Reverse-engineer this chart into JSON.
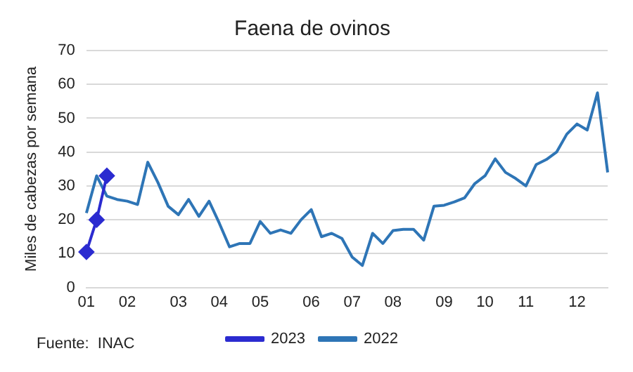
{
  "chart_data": {
    "type": "line",
    "title": "Faena de ovinos",
    "ylabel": "Miles de cabezas por semana",
    "annotations": [
      "Fuente:  INAC"
    ],
    "categories": [
      "01",
      null,
      null,
      null,
      "02",
      null,
      null,
      null,
      null,
      "03",
      null,
      null,
      null,
      "04",
      null,
      null,
      null,
      "05",
      null,
      null,
      null,
      null,
      "06",
      null,
      null,
      null,
      "07",
      null,
      null,
      null,
      "08",
      null,
      null,
      null,
      null,
      "09",
      null,
      null,
      null,
      "10",
      null,
      null,
      null,
      "11",
      null,
      null,
      null,
      null,
      "12",
      null,
      null,
      null
    ],
    "series": [
      {
        "name": "2023",
        "color": "#2b2bd0",
        "marker": "diamond",
        "values": [
          10.5,
          20,
          33,
          null,
          null,
          null,
          null,
          null,
          null,
          null,
          null,
          null,
          null,
          null,
          null,
          null,
          null,
          null,
          null,
          null,
          null,
          null,
          null,
          null,
          null,
          null,
          null,
          null,
          null,
          null,
          null,
          null,
          null,
          null,
          null,
          null,
          null,
          null,
          null,
          null,
          null,
          null,
          null,
          null,
          null,
          null,
          null,
          null,
          null,
          null,
          null,
          null
        ]
      },
      {
        "name": "2022",
        "color": "#2e75b6",
        "marker": "none",
        "values": [
          22,
          33,
          27,
          26,
          25.5,
          24.5,
          37,
          31,
          24,
          21.5,
          26,
          21,
          25.5,
          19,
          12,
          13,
          13,
          19.5,
          16,
          17,
          16,
          20,
          23,
          15,
          16,
          14.5,
          9,
          6.5,
          16,
          13,
          16.8,
          17.2,
          17.2,
          14,
          24,
          24.3,
          25.3,
          26.5,
          30.7,
          33,
          38,
          34,
          32.2,
          30,
          36.3,
          37.8,
          40,
          45.3,
          48.3,
          46.5,
          57.5,
          34
        ]
      }
    ],
    "ylim": [
      0,
      70
    ],
    "yticks": [
      0,
      10,
      20,
      30,
      40,
      50,
      60,
      70
    ],
    "grid": "y",
    "legend": "bottom"
  }
}
